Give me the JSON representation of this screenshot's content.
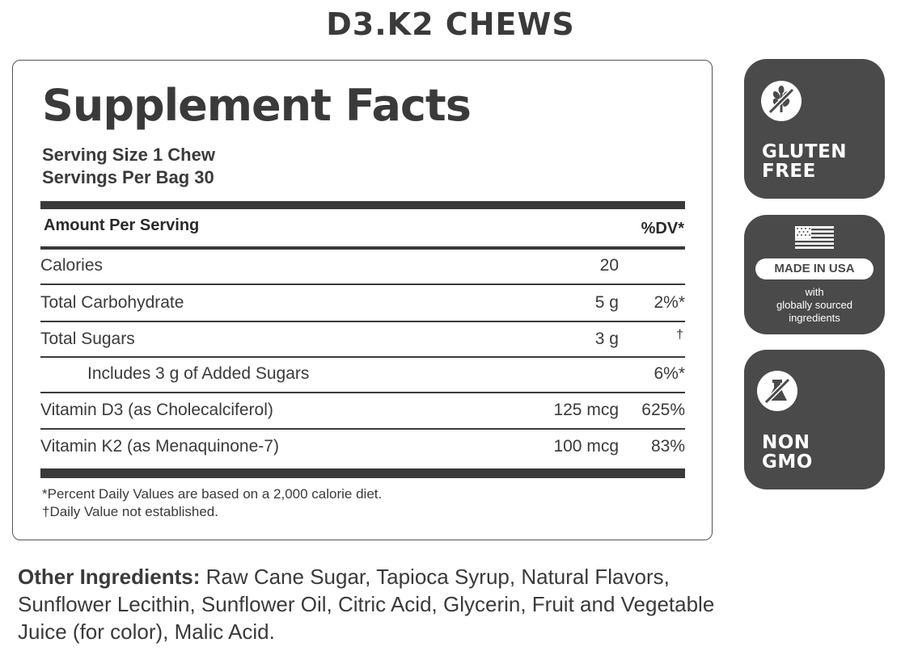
{
  "product_title": "D3.K2 CHEWS",
  "facts": {
    "heading": "Supplement Facts",
    "serving_size": "Serving Size 1 Chew",
    "servings_per": "Servings Per Bag 30",
    "amount_header": "Amount Per Serving",
    "dv_header": "%DV*",
    "rows": [
      {
        "name": "Calories",
        "amount": "20",
        "dv": ""
      },
      {
        "name": "Total Carbohydrate",
        "amount": "5 g",
        "dv": "2%*"
      },
      {
        "name": "Total Sugars",
        "amount": "3 g",
        "dv": "†"
      },
      {
        "name": "Includes 3 g of Added Sugars",
        "amount": "",
        "dv": "6%*"
      },
      {
        "name": "Vitamin D3 (as Cholecalciferol)",
        "amount": "125 mcg",
        "dv": "625%"
      },
      {
        "name": "Vitamin K2 (as Menaquinone-7)",
        "amount": "100 mcg",
        "dv": "83%"
      }
    ],
    "footnote_1": "*Percent Daily Values are based on a 2,000 calorie diet.",
    "footnote_2": "†Daily Value not established."
  },
  "badges": {
    "gluten_line1": "GLUTEN",
    "gluten_line2": "FREE",
    "usa_pill": "MADE IN USA",
    "usa_line1": "with",
    "usa_line2": "globally sourced",
    "usa_line3": "ingredients",
    "gmo_line1": "NON",
    "gmo_line2": "GMO"
  },
  "other_ingredients": {
    "label": "Other Ingredients:",
    "text": " Raw Cane Sugar, Tapioca Syrup, Natural Flavors, Sunflower Lecithin, Sunflower Oil, Citric Acid, Glycerin, Fruit and Vegetable Juice (for color), Malic Acid."
  },
  "colors": {
    "text": "#3a3a3a",
    "badge_bg": "#4a4a4a"
  },
  "icons": [
    "no-gluten-icon",
    "usa-flag-icon",
    "no-gmo-icon"
  ]
}
